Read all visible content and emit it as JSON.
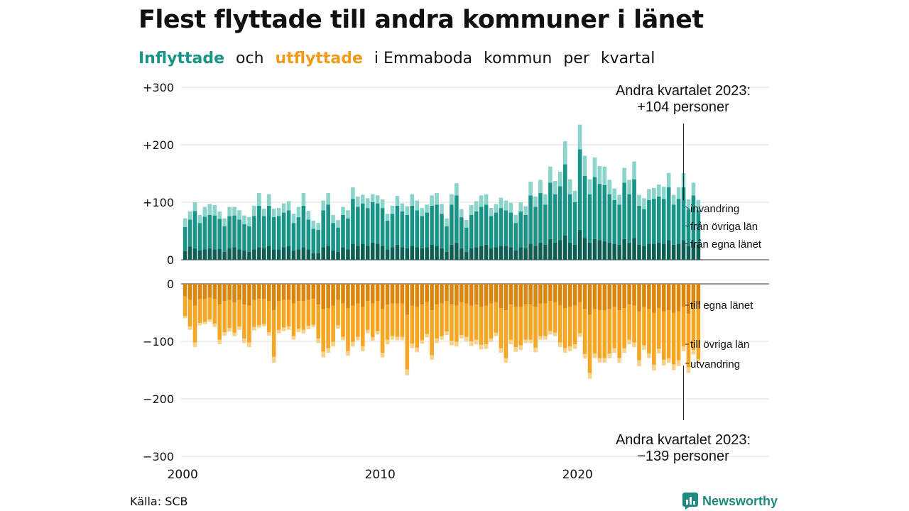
{
  "title": "Flest flyttade till andra kommuner i länet",
  "subtitle": {
    "in_word": "Inflyttade",
    "och": "och",
    "out_word": "utflyttade",
    "i_emmaboda": "i Emmaboda",
    "kommun": "kommun",
    "per": "per",
    "kvartal": "kvartal"
  },
  "source": "Källa: SCB",
  "logo_text": "Newsworthy",
  "colors": {
    "in_egna": "#0f5e53",
    "in_ovriga": "#1a9488",
    "in_invandring": "#8ad4cc",
    "out_egna": "#d9870e",
    "out_ovriga": "#f5a623",
    "out_utvandring": "#f8d28c",
    "grid": "#dddddd",
    "in_word": "#1a9488",
    "out_word": "#f29a1c"
  },
  "chart_data": {
    "type": "bar",
    "stacked": true,
    "x_label_years": [
      "2000",
      "2010",
      "2020"
    ],
    "upper_y_ticks": [
      "+300",
      "+200",
      "+100",
      "0"
    ],
    "upper_y_values": [
      300,
      200,
      100,
      0
    ],
    "lower_y_ticks": [
      "0",
      "−100",
      "−200",
      "−300"
    ],
    "lower_y_values": [
      0,
      -100,
      -200,
      -300
    ],
    "ylim_upper": [
      0,
      300
    ],
    "ylim_lower": [
      -300,
      0
    ],
    "grid": true,
    "x_start": "2000 Q1",
    "x_end": "2023 Q2",
    "series_labels_in": [
      "invandring",
      "från övriga län",
      "från egna länet"
    ],
    "series_labels_out": [
      "till egna länet",
      "till övriga län",
      "utvandring"
    ],
    "annotation_top_line1": "Andra kvartalet 2023:",
    "annotation_top_line2": "+104 personer",
    "annotation_bottom_line1": "Andra kvartalet 2023:",
    "annotation_bottom_line2": "−139 personer",
    "inflow_totals": [
      72,
      84,
      100,
      78,
      92,
      97,
      95,
      84,
      72,
      92,
      92,
      86,
      77,
      74,
      94,
      116,
      89,
      114,
      89,
      90,
      98,
      102,
      80,
      92,
      116,
      85,
      68,
      64,
      103,
      116,
      78,
      69,
      92,
      86,
      126,
      110,
      113,
      107,
      114,
      112,
      105,
      80,
      94,
      111,
      98,
      93,
      114,
      103,
      90,
      96,
      112,
      116,
      97,
      72,
      114,
      133,
      88,
      69,
      95,
      102,
      112,
      114,
      90,
      97,
      108,
      103,
      99,
      78,
      100,
      93,
      136,
      110,
      139,
      114,
      162,
      137,
      153,
      206,
      140,
      120,
      235,
      181,
      140,
      178,
      163,
      162,
      139,
      124,
      113,
      160,
      139,
      171,
      113,
      107,
      123,
      125,
      131,
      127,
      151,
      113,
      126,
      151,
      105,
      134,
      104
    ],
    "inflow_egna": [
      15,
      23,
      20,
      16,
      18,
      20,
      18,
      19,
      14,
      20,
      22,
      18,
      16,
      14,
      18,
      22,
      20,
      24,
      18,
      18,
      22,
      24,
      16,
      18,
      22,
      18,
      12,
      12,
      22,
      24,
      16,
      14,
      22,
      18,
      28,
      24,
      28,
      24,
      30,
      28,
      24,
      18,
      22,
      26,
      22,
      20,
      24,
      22,
      20,
      22,
      26,
      24,
      20,
      14,
      26,
      30,
      20,
      14,
      20,
      22,
      24,
      26,
      20,
      22,
      24,
      24,
      22,
      16,
      22,
      20,
      28,
      24,
      30,
      26,
      36,
      30,
      34,
      42,
      30,
      26,
      52,
      38,
      30,
      36,
      34,
      32,
      30,
      28,
      26,
      36,
      30,
      38,
      26,
      24,
      28,
      28,
      30,
      28,
      34,
      26,
      28,
      34,
      24,
      30,
      26
    ],
    "inflow_ovriga": [
      42,
      47,
      65,
      48,
      57,
      58,
      59,
      52,
      44,
      56,
      55,
      52,
      46,
      44,
      58,
      72,
      56,
      70,
      56,
      58,
      60,
      62,
      48,
      56,
      72,
      52,
      42,
      40,
      64,
      72,
      48,
      42,
      56,
      54,
      78,
      68,
      70,
      66,
      70,
      70,
      66,
      50,
      58,
      68,
      62,
      58,
      70,
      64,
      56,
      60,
      68,
      72,
      60,
      44,
      70,
      82,
      54,
      42,
      58,
      62,
      68,
      70,
      56,
      60,
      66,
      62,
      60,
      48,
      62,
      58,
      84,
      68,
      86,
      70,
      98,
      84,
      94,
      124,
      84,
      74,
      140,
      108,
      84,
      108,
      98,
      98,
      84,
      76,
      70,
      98,
      84,
      102,
      68,
      64,
      76,
      78,
      80,
      78,
      92,
      70,
      78,
      92,
      64,
      82,
      60
    ],
    "outflow_totals": [
      -60,
      -80,
      -110,
      -72,
      -70,
      -66,
      -75,
      -105,
      -90,
      -83,
      -91,
      -80,
      -103,
      -110,
      -81,
      -76,
      -74,
      -90,
      -137,
      -86,
      -82,
      -80,
      -97,
      -84,
      -86,
      -79,
      -75,
      -103,
      -128,
      -120,
      -109,
      -78,
      -98,
      -125,
      -109,
      -98,
      -117,
      -86,
      -99,
      -88,
      -128,
      -105,
      -97,
      -98,
      -98,
      -159,
      -112,
      -119,
      -104,
      -93,
      -132,
      -103,
      -97,
      -89,
      -107,
      -109,
      -95,
      -100,
      -108,
      -105,
      -114,
      -113,
      -101,
      -91,
      -120,
      -137,
      -105,
      -118,
      -115,
      -103,
      -103,
      -119,
      -97,
      -97,
      -88,
      -91,
      -110,
      -120,
      -117,
      -113,
      -92,
      -130,
      -165,
      -129,
      -137,
      -137,
      -129,
      -120,
      -137,
      -120,
      -105,
      -110,
      -143,
      -115,
      -129,
      -151,
      -121,
      -142,
      -137,
      -150,
      -143,
      -117,
      -155,
      -123,
      -139
    ],
    "outflow_egna": [
      -22,
      -28,
      -38,
      -26,
      -26,
      -24,
      -26,
      -36,
      -30,
      -28,
      -32,
      -28,
      -36,
      -38,
      -28,
      -26,
      -26,
      -30,
      -46,
      -30,
      -28,
      -28,
      -34,
      -30,
      -30,
      -28,
      -26,
      -36,
      -44,
      -42,
      -38,
      -28,
      -34,
      -42,
      -38,
      -34,
      -40,
      -30,
      -34,
      -30,
      -44,
      -36,
      -34,
      -34,
      -34,
      -54,
      -38,
      -40,
      -36,
      -32,
      -46,
      -36,
      -34,
      -30,
      -36,
      -38,
      -32,
      -34,
      -38,
      -36,
      -40,
      -38,
      -34,
      -32,
      -42,
      -46,
      -36,
      -40,
      -40,
      -36,
      -36,
      -40,
      -34,
      -34,
      -30,
      -32,
      -38,
      -42,
      -40,
      -38,
      -32,
      -44,
      -54,
      -44,
      -46,
      -46,
      -44,
      -40,
      -46,
      -42,
      -36,
      -38,
      -48,
      -40,
      -44,
      -50,
      -42,
      -48,
      -46,
      -50,
      -48,
      -40,
      -52,
      -42,
      -36
    ],
    "outflow_utvandring": [
      -4,
      -6,
      -8,
      -4,
      -4,
      -4,
      -6,
      -8,
      -6,
      -6,
      -6,
      -6,
      -8,
      -8,
      -6,
      -4,
      -4,
      -6,
      -10,
      -6,
      -6,
      -6,
      -6,
      -6,
      -6,
      -6,
      -4,
      -8,
      -10,
      -8,
      -8,
      -6,
      -6,
      -8,
      -8,
      -6,
      -8,
      -6,
      -6,
      -6,
      -8,
      -8,
      -6,
      -6,
      -6,
      -10,
      -8,
      -8,
      -6,
      -6,
      -8,
      -8,
      -6,
      -6,
      -8,
      -8,
      -6,
      -8,
      -8,
      -8,
      -8,
      -8,
      -6,
      -6,
      -8,
      -8,
      -8,
      -8,
      -8,
      -6,
      -6,
      -8,
      -6,
      -6,
      -6,
      -6,
      -8,
      -8,
      -8,
      -8,
      -6,
      -8,
      -10,
      -8,
      -8,
      -8,
      -8,
      -8,
      -8,
      -8,
      -8,
      -8,
      -10,
      -8,
      -8,
      -10,
      -8,
      -10,
      -8,
      -10,
      -10,
      -8,
      -10,
      -8,
      -8
    ]
  }
}
